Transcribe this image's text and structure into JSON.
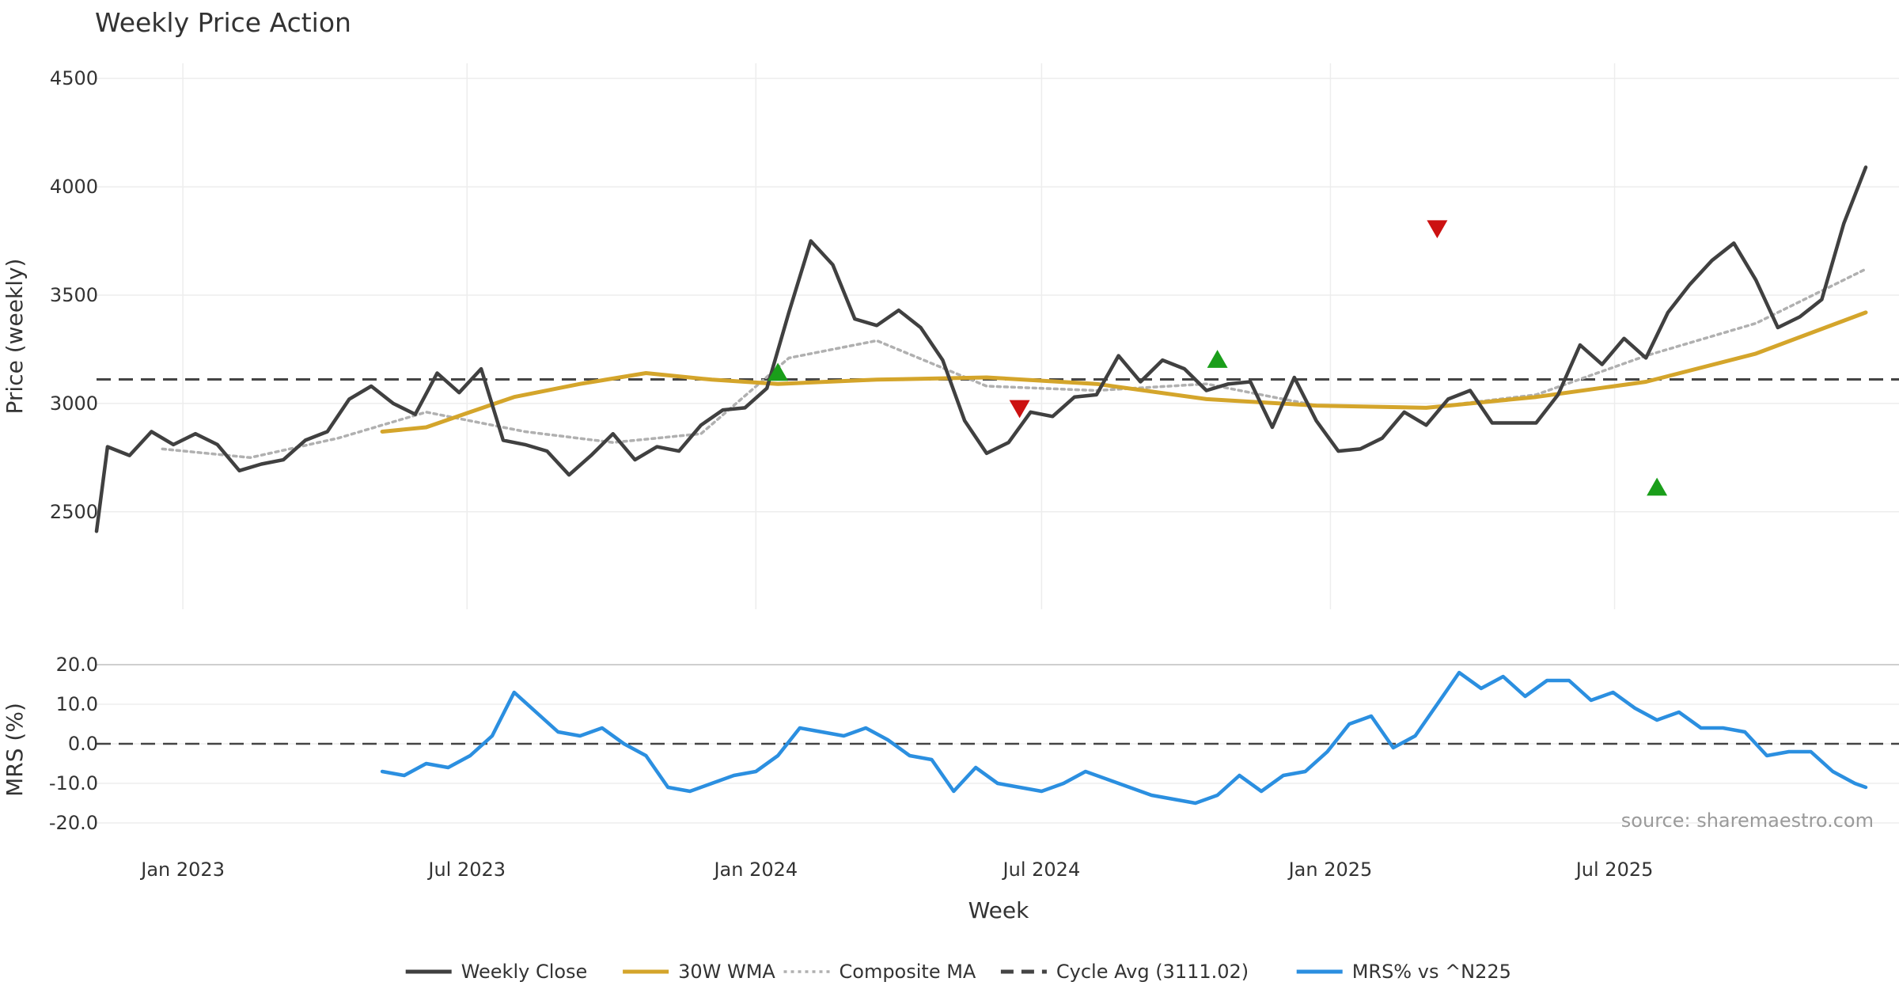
{
  "chart_data": [
    {
      "type": "line",
      "title": "Weekly Price Action",
      "ylabel": "Price (weekly)",
      "x_range": [
        "2022-11-07",
        "2025-12-08"
      ],
      "ylim": [
        2050,
        4570
      ],
      "yticks": [
        2500,
        3000,
        3500,
        4000,
        4500
      ],
      "grid": true,
      "reference_line": {
        "name": "Cycle Avg (3111.02)",
        "value": 3111.02,
        "style": "dashed",
        "color": "#444444"
      },
      "series": [
        {
          "name": "Weekly Close",
          "color": "#404040",
          "style": "solid",
          "points": [
            [
              "2022-11-07",
              2410
            ],
            [
              "2022-11-14",
              2800
            ],
            [
              "2022-11-28",
              2760
            ],
            [
              "2022-12-12",
              2870
            ],
            [
              "2022-12-26",
              2810
            ],
            [
              "2023-01-09",
              2860
            ],
            [
              "2023-01-23",
              2810
            ],
            [
              "2023-02-06",
              2690
            ],
            [
              "2023-02-20",
              2720
            ],
            [
              "2023-03-06",
              2740
            ],
            [
              "2023-03-20",
              2830
            ],
            [
              "2023-04-03",
              2870
            ],
            [
              "2023-04-17",
              3020
            ],
            [
              "2023-05-01",
              3080
            ],
            [
              "2023-05-15",
              3000
            ],
            [
              "2023-05-29",
              2950
            ],
            [
              "2023-06-12",
              3140
            ],
            [
              "2023-06-26",
              3050
            ],
            [
              "2023-07-10",
              3160
            ],
            [
              "2023-07-24",
              2830
            ],
            [
              "2023-08-07",
              2810
            ],
            [
              "2023-08-21",
              2780
            ],
            [
              "2023-09-04",
              2670
            ],
            [
              "2023-09-18",
              2760
            ],
            [
              "2023-10-02",
              2860
            ],
            [
              "2023-10-16",
              2740
            ],
            [
              "2023-10-30",
              2800
            ],
            [
              "2023-11-13",
              2780
            ],
            [
              "2023-11-27",
              2900
            ],
            [
              "2023-12-11",
              2970
            ],
            [
              "2023-12-25",
              2980
            ],
            [
              "2024-01-08",
              3070
            ],
            [
              "2024-01-22",
              3420
            ],
            [
              "2024-02-05",
              3750
            ],
            [
              "2024-02-19",
              3640
            ],
            [
              "2024-03-04",
              3390
            ],
            [
              "2024-03-18",
              3360
            ],
            [
              "2024-04-01",
              3430
            ],
            [
              "2024-04-15",
              3350
            ],
            [
              "2024-04-29",
              3200
            ],
            [
              "2024-05-13",
              2920
            ],
            [
              "2024-05-27",
              2770
            ],
            [
              "2024-06-10",
              2820
            ],
            [
              "2024-06-24",
              2960
            ],
            [
              "2024-07-08",
              2940
            ],
            [
              "2024-07-22",
              3030
            ],
            [
              "2024-08-05",
              3040
            ],
            [
              "2024-08-19",
              3220
            ],
            [
              "2024-09-02",
              3100
            ],
            [
              "2024-09-16",
              3200
            ],
            [
              "2024-09-30",
              3160
            ],
            [
              "2024-10-14",
              3060
            ],
            [
              "2024-10-28",
              3090
            ],
            [
              "2024-11-11",
              3100
            ],
            [
              "2024-11-25",
              2890
            ],
            [
              "2024-12-09",
              3120
            ],
            [
              "2024-12-23",
              2920
            ],
            [
              "2025-01-06",
              2780
            ],
            [
              "2025-01-20",
              2790
            ],
            [
              "2025-02-03",
              2840
            ],
            [
              "2025-02-17",
              2960
            ],
            [
              "2025-03-03",
              2900
            ],
            [
              "2025-03-17",
              3020
            ],
            [
              "2025-03-31",
              3060
            ],
            [
              "2025-04-14",
              2910
            ],
            [
              "2025-04-28",
              2910
            ],
            [
              "2025-05-12",
              2910
            ],
            [
              "2025-05-26",
              3040
            ],
            [
              "2025-06-09",
              3270
            ],
            [
              "2025-06-23",
              3180
            ],
            [
              "2025-07-07",
              3300
            ],
            [
              "2025-07-21",
              3210
            ],
            [
              "2025-08-04",
              3420
            ],
            [
              "2025-08-18",
              3550
            ],
            [
              "2025-09-01",
              3660
            ],
            [
              "2025-09-15",
              3740
            ],
            [
              "2025-09-29",
              3570
            ],
            [
              "2025-10-13",
              3350
            ],
            [
              "2025-10-27",
              3400
            ],
            [
              "2025-11-10",
              3480
            ],
            [
              "2025-11-24",
              3830
            ],
            [
              "2025-12-08",
              4090
            ]
          ]
        },
        {
          "name": "30W WMA",
          "color": "#d4a52b",
          "style": "solid",
          "points": [
            [
              "2023-05-08",
              2870
            ],
            [
              "2023-06-05",
              2890
            ],
            [
              "2023-07-03",
              2960
            ],
            [
              "2023-07-31",
              3030
            ],
            [
              "2023-09-11",
              3090
            ],
            [
              "2023-10-23",
              3140
            ],
            [
              "2023-12-04",
              3110
            ],
            [
              "2024-01-15",
              3090
            ],
            [
              "2024-03-18",
              3110
            ],
            [
              "2024-05-27",
              3120
            ],
            [
              "2024-08-05",
              3090
            ],
            [
              "2024-10-14",
              3020
            ],
            [
              "2024-12-23",
              2990
            ],
            [
              "2025-03-03",
              2980
            ],
            [
              "2025-05-12",
              3030
            ],
            [
              "2025-07-21",
              3100
            ],
            [
              "2025-09-29",
              3230
            ],
            [
              "2025-12-08",
              3420
            ]
          ]
        },
        {
          "name": "Composite MA",
          "color": "#b0b0b0",
          "style": "dotted",
          "points": [
            [
              "2022-12-19",
              2790
            ],
            [
              "2023-02-13",
              2750
            ],
            [
              "2023-04-10",
              2840
            ],
            [
              "2023-06-05",
              2960
            ],
            [
              "2023-08-07",
              2870
            ],
            [
              "2023-10-02",
              2820
            ],
            [
              "2023-11-27",
              2860
            ],
            [
              "2024-01-22",
              3210
            ],
            [
              "2024-03-18",
              3290
            ],
            [
              "2024-05-27",
              3080
            ],
            [
              "2024-08-05",
              3060
            ],
            [
              "2024-10-14",
              3090
            ],
            [
              "2024-12-23",
              2990
            ],
            [
              "2025-03-03",
              2980
            ],
            [
              "2025-05-12",
              3040
            ],
            [
              "2025-07-21",
              3220
            ],
            [
              "2025-09-29",
              3370
            ],
            [
              "2025-12-08",
              3620
            ]
          ]
        }
      ],
      "signals": [
        {
          "type": "buy",
          "date": "2024-01-15",
          "value": 3140,
          "color": "#1a9e1a"
        },
        {
          "type": "sell",
          "date": "2024-06-17",
          "value": 2980,
          "color": "#cc1111"
        },
        {
          "type": "buy",
          "date": "2024-10-21",
          "value": 3200,
          "color": "#1a9e1a"
        },
        {
          "type": "sell",
          "date": "2025-03-10",
          "value": 3810,
          "color": "#cc1111"
        },
        {
          "type": "buy",
          "date": "2025-07-28",
          "value": 2610,
          "color": "#1a9e1a"
        }
      ]
    },
    {
      "type": "line",
      "ylabel": "MRS (%)",
      "xlabel": "Week",
      "ylim": [
        -25,
        22
      ],
      "yticks": [
        "20.0",
        "10.0",
        "0.0",
        "-10.0",
        "-20.0"
      ],
      "ytick_values": [
        20,
        10,
        0,
        -10,
        -20
      ],
      "xticks": [
        {
          "label": "Jan 2023",
          "date": "2023-01-01"
        },
        {
          "label": "Jul 2023",
          "date": "2023-07-01"
        },
        {
          "label": "Jan 2024",
          "date": "2024-01-01"
        },
        {
          "label": "Jul 2024",
          "date": "2024-07-01"
        },
        {
          "label": "Jan 2025",
          "date": "2025-01-01"
        },
        {
          "label": "Jul 2025",
          "date": "2025-07-01"
        }
      ],
      "reference_line": {
        "value": 0,
        "style": "dashed",
        "color": "#444444"
      },
      "series": [
        {
          "name": "MRS% vs ^N225",
          "color": "#2b8fe0",
          "style": "solid",
          "points": [
            [
              "2023-05-08",
              -7
            ],
            [
              "2023-05-22",
              -8
            ],
            [
              "2023-06-05",
              -5
            ],
            [
              "2023-06-19",
              -6
            ],
            [
              "2023-07-03",
              -3
            ],
            [
              "2023-07-17",
              2
            ],
            [
              "2023-07-31",
              13
            ],
            [
              "2023-08-14",
              8
            ],
            [
              "2023-08-28",
              3
            ],
            [
              "2023-09-11",
              2
            ],
            [
              "2023-09-25",
              4
            ],
            [
              "2023-10-09",
              0
            ],
            [
              "2023-10-23",
              -3
            ],
            [
              "2023-11-06",
              -11
            ],
            [
              "2023-11-20",
              -12
            ],
            [
              "2023-12-04",
              -10
            ],
            [
              "2023-12-18",
              -8
            ],
            [
              "2024-01-01",
              -7
            ],
            [
              "2024-01-15",
              -3
            ],
            [
              "2024-01-29",
              4
            ],
            [
              "2024-02-12",
              3
            ],
            [
              "2024-02-26",
              2
            ],
            [
              "2024-03-11",
              4
            ],
            [
              "2024-03-25",
              1
            ],
            [
              "2024-04-08",
              -3
            ],
            [
              "2024-04-22",
              -4
            ],
            [
              "2024-05-06",
              -12
            ],
            [
              "2024-05-20",
              -6
            ],
            [
              "2024-06-03",
              -10
            ],
            [
              "2024-06-17",
              -11
            ],
            [
              "2024-07-01",
              -12
            ],
            [
              "2024-07-15",
              -10
            ],
            [
              "2024-07-29",
              -7
            ],
            [
              "2024-08-12",
              -9
            ],
            [
              "2024-08-26",
              -11
            ],
            [
              "2024-09-09",
              -13
            ],
            [
              "2024-09-23",
              -14
            ],
            [
              "2024-10-07",
              -15
            ],
            [
              "2024-10-21",
              -13
            ],
            [
              "2024-11-04",
              -8
            ],
            [
              "2024-11-18",
              -12
            ],
            [
              "2024-12-02",
              -8
            ],
            [
              "2024-12-16",
              -7
            ],
            [
              "2024-12-30",
              -2
            ],
            [
              "2025-01-13",
              5
            ],
            [
              "2025-01-27",
              7
            ],
            [
              "2025-02-10",
              -1
            ],
            [
              "2025-02-24",
              2
            ],
            [
              "2025-03-10",
              10
            ],
            [
              "2025-03-24",
              18
            ],
            [
              "2025-04-07",
              14
            ],
            [
              "2025-04-21",
              17
            ],
            [
              "2025-05-05",
              12
            ],
            [
              "2025-05-19",
              16
            ],
            [
              "2025-06-02",
              16
            ],
            [
              "2025-06-16",
              11
            ],
            [
              "2025-06-30",
              13
            ],
            [
              "2025-07-14",
              9
            ],
            [
              "2025-07-28",
              6
            ],
            [
              "2025-08-11",
              8
            ],
            [
              "2025-08-25",
              4
            ],
            [
              "2025-09-08",
              4
            ],
            [
              "2025-09-22",
              3
            ],
            [
              "2025-10-06",
              -3
            ],
            [
              "2025-10-20",
              -2
            ],
            [
              "2025-11-03",
              -2
            ],
            [
              "2025-11-17",
              -7
            ],
            [
              "2025-12-01",
              -10
            ],
            [
              "2025-12-08",
              -11
            ]
          ]
        }
      ]
    }
  ],
  "legend": {
    "placement": "bottom-center",
    "items": [
      {
        "label": "Weekly Close",
        "color": "#404040",
        "style": "solid"
      },
      {
        "label": "30W WMA",
        "color": "#d4a52b",
        "style": "solid"
      },
      {
        "label": "Composite MA",
        "color": "#b0b0b0",
        "style": "dotted"
      },
      {
        "label": "Cycle Avg (3111.02)",
        "color": "#444444",
        "style": "dashed"
      },
      {
        "label": "MRS% vs ^N225",
        "color": "#2b8fe0",
        "style": "solid"
      }
    ]
  },
  "source": "source: sharemaestro.com"
}
